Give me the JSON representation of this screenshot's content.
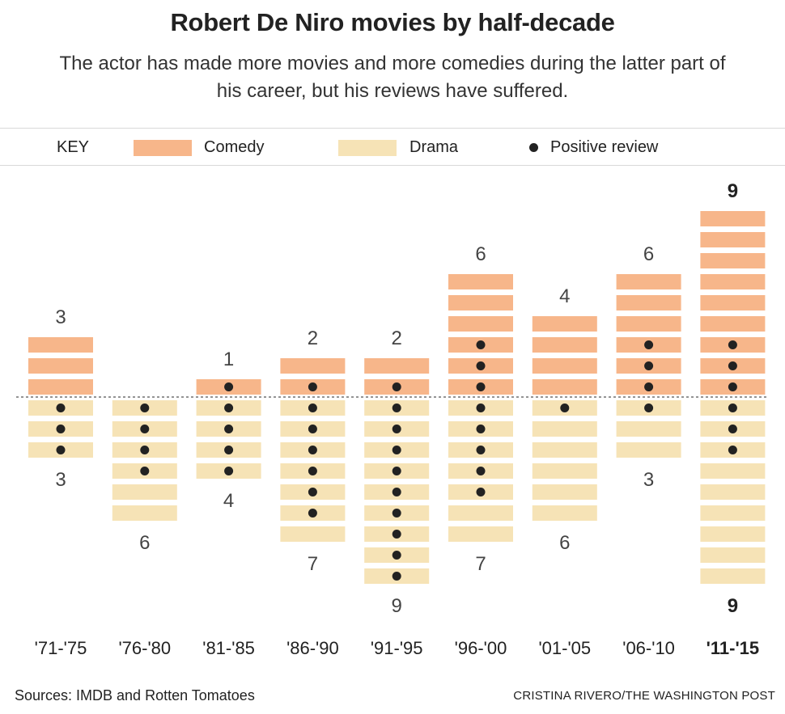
{
  "title": "Robert De Niro movies by half-decade",
  "subtitle": "The actor has made more movies and more comedies during the latter part of his career, but his reviews have suffered.",
  "key": {
    "label": "KEY",
    "comedy": "Comedy",
    "drama": "Drama",
    "positive": "Positive review"
  },
  "colors": {
    "comedy": "#f7b68a",
    "drama": "#f6e3b6",
    "dot": "#222222"
  },
  "chart_data": {
    "type": "bar",
    "categories": [
      "'71-'75",
      "'76-'80",
      "'81-'85",
      "'86-'90",
      "'91-'95",
      "'96-'00",
      "'01-'05",
      "'06-'10",
      "'11-'15"
    ],
    "series": [
      {
        "name": "Comedy",
        "values": [
          3,
          0,
          1,
          2,
          2,
          6,
          4,
          6,
          9
        ]
      },
      {
        "name": "Drama",
        "values": [
          3,
          6,
          4,
          7,
          9,
          7,
          6,
          3,
          9
        ]
      }
    ],
    "positive_reviews": {
      "comedy": [
        0,
        0,
        1,
        1,
        1,
        3,
        0,
        3,
        3
      ],
      "drama": [
        3,
        4,
        4,
        6,
        9,
        5,
        1,
        1,
        3
      ]
    },
    "comedy_labels": [
      "3",
      "",
      "1",
      "2",
      "2",
      "6",
      "4",
      "6",
      "9"
    ],
    "drama_labels": [
      "3",
      "6",
      "4",
      "7",
      "9",
      "7",
      "6",
      "3",
      "9"
    ],
    "highlight_category": "'11-'15"
  },
  "footer": {
    "sources": "Sources: IMDB and Rotten Tomatoes",
    "credit": "CRISTINA RIVERO/THE WASHINGTON POST"
  }
}
